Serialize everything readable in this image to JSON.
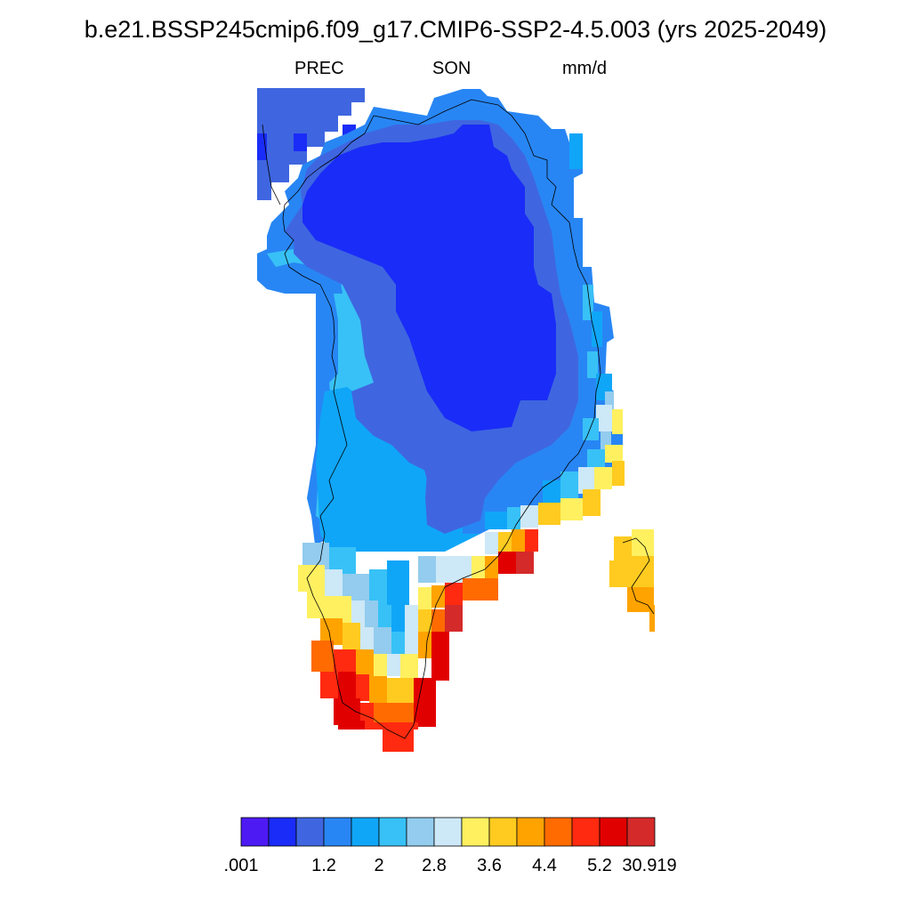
{
  "title": "b.e21.BSSP245cmip6.f09_g17.CMIP6-SSP2-4.5.003 (yrs 2025-2049)",
  "subtitle": {
    "left": "PREC",
    "center": "SON",
    "right": "mm/d"
  },
  "colorbar": {
    "colors": [
      "#4d1af4",
      "#1a2cf7",
      "#3f66e0",
      "#2886f4",
      "#10a6f8",
      "#38c1f6",
      "#93ccee",
      "#cde8f7",
      "#fff060",
      "#ffcb20",
      "#ffa300",
      "#ff6b00",
      "#ff2a10",
      "#e10000",
      "#d42a2a"
    ],
    "tick_labels": [
      ".001",
      "1.2",
      "2",
      "2.8",
      "3.6",
      "4.4",
      "5.2",
      "30.919"
    ]
  },
  "chart_data": {
    "type": "heatmap",
    "title": "b.e21.BSSP245cmip6.f09_g17.CMIP6-SSP2-4.5.003 (yrs 2025-2049)",
    "variable": "PREC",
    "season": "SON",
    "units": "mm/d",
    "region": "Greenland",
    "levels": [
      0.001,
      0.8,
      1.2,
      1.6,
      2.0,
      2.4,
      2.8,
      3.2,
      3.6,
      4.0,
      4.4,
      4.8,
      5.2,
      5.6,
      30.919
    ],
    "field_summary": [
      {
        "area": "central interior / north",
        "approx_value_mm_per_day": "0.4-0.8"
      },
      {
        "area": "interior margins",
        "approx_value_mm_per_day": "0.8-1.6"
      },
      {
        "area": "west coast",
        "approx_value_mm_per_day": "1.6-2.8"
      },
      {
        "area": "southeast coast",
        "approx_value_mm_per_day": "3.2-5.6"
      },
      {
        "area": "southern tip",
        "approx_value_mm_per_day": "4.0-5.6+"
      },
      {
        "area": "east coast island",
        "approx_value_mm_per_day": "3.2-4.4"
      }
    ]
  }
}
